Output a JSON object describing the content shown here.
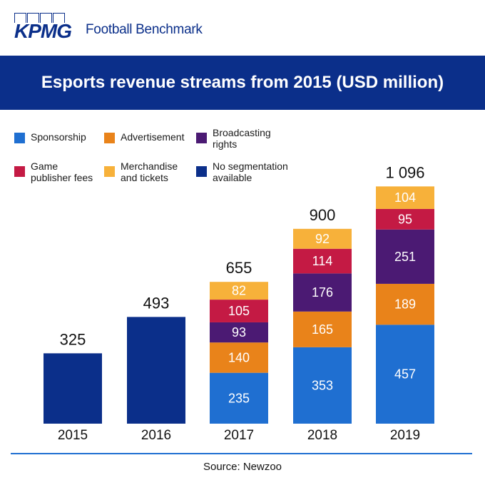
{
  "header": {
    "logo_text": "KPMG",
    "brand_title": "Football Benchmark"
  },
  "banner": {
    "title": "Esports revenue streams from 2015 (USD million)"
  },
  "legend": [
    {
      "label": "Sponsorship",
      "color": "#1f6fd1"
    },
    {
      "label": "Advertisement",
      "color": "#e9831a"
    },
    {
      "label": "Broadcasting\nrights",
      "color": "#4b1a73"
    },
    {
      "label": "Game\npublisher fees",
      "color": "#c41a44"
    },
    {
      "label": "Merchandise\nand tickets",
      "color": "#f7b13a"
    },
    {
      "label": "No segmentation\navailable",
      "color": "#0b2f8a"
    }
  ],
  "chart_data": {
    "type": "bar",
    "stacked": true,
    "title": "Esports revenue streams from 2015 (USD million)",
    "categories": [
      "2015",
      "2016",
      "2017",
      "2018",
      "2019"
    ],
    "totals": [
      "325",
      "493",
      "655",
      "900",
      "1 096"
    ],
    "series": [
      {
        "name": "Sponsorship",
        "color": "#1f6fd1",
        "values": [
          null,
          null,
          235,
          353,
          457
        ]
      },
      {
        "name": "Advertisement",
        "color": "#e9831a",
        "values": [
          null,
          null,
          140,
          165,
          189
        ]
      },
      {
        "name": "Broadcasting rights",
        "color": "#4b1a73",
        "values": [
          null,
          null,
          93,
          176,
          251
        ]
      },
      {
        "name": "Game publisher fees",
        "color": "#c41a44",
        "values": [
          null,
          null,
          105,
          114,
          95
        ]
      },
      {
        "name": "Merchandise and tickets",
        "color": "#f7b13a",
        "values": [
          null,
          null,
          82,
          92,
          104
        ]
      },
      {
        "name": "No segmentation available",
        "color": "#0b2f8a",
        "values": [
          325,
          493,
          null,
          null,
          null
        ]
      }
    ],
    "axis_line_color": "#1f6fd1"
  },
  "footer": {
    "source": "Source: Newzoo"
  }
}
